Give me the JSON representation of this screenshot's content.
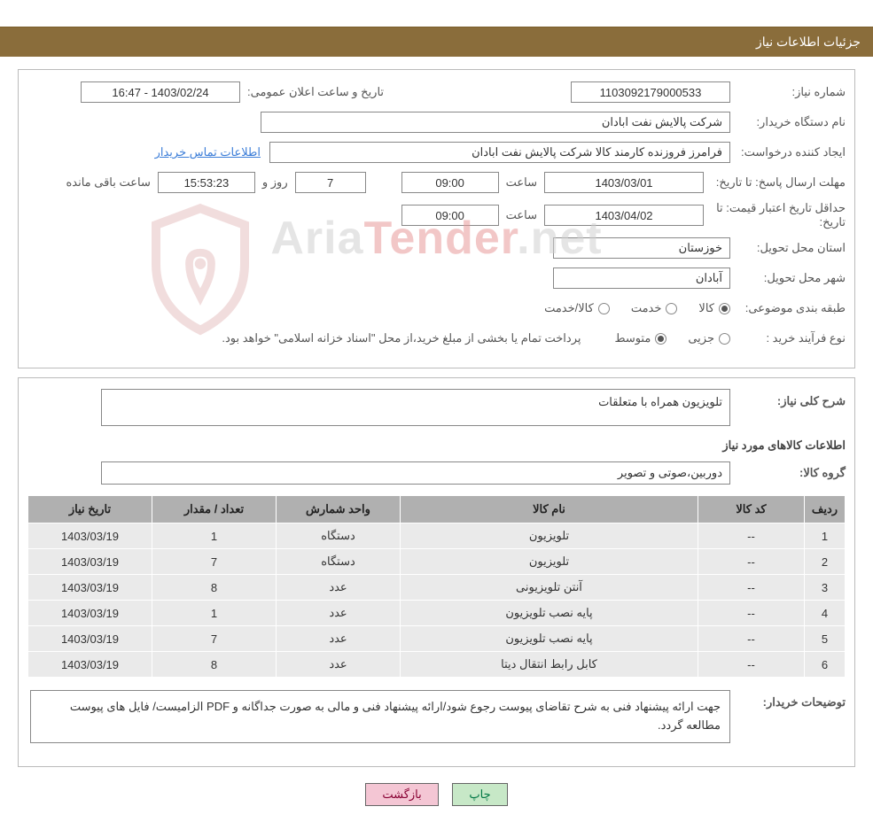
{
  "header": {
    "title": "جزئیات اطلاعات نیاز"
  },
  "labels": {
    "need_number": "شماره نیاز:",
    "datetime_announce": "تاریخ و ساعت اعلان عمومی:",
    "buyer_org": "نام دستگاه خریدار:",
    "requester": "ایجاد کننده درخواست:",
    "contact_link": "اطلاعات تماس خریدار",
    "reply_deadline": "مهلت ارسال پاسخ:",
    "to_date": "تا تاریخ:",
    "time": "ساعت",
    "and": "و",
    "day": "روز و",
    "hours_remain": "ساعت باقی مانده",
    "price_validity": "حداقل تاریخ اعتبار قیمت:",
    "delivery_province": "استان محل تحویل:",
    "delivery_city": "شهر محل تحویل:",
    "subject_class": "طبقه بندی موضوعی:",
    "goods": "کالا",
    "service": "خدمت",
    "goods_service": "کالا/خدمت",
    "purchase_type": "نوع فرآیند خرید :",
    "partial": "جزیی",
    "medium": "متوسط",
    "payment_note": "پرداخت تمام یا بخشی از مبلغ خرید،از محل \"اسناد خزانه اسلامی\" خواهد بود.",
    "general_desc": "شرح کلی نیاز:",
    "items_info": "اطلاعات کالاهای مورد نیاز",
    "goods_group": "گروه کالا:",
    "buyer_notes": "توضیحات خریدار:"
  },
  "fields": {
    "need_number": "1103092179000533",
    "datetime_announce": "1403/02/24 - 16:47",
    "buyer_org": "شرکت پالایش نفت ابادان",
    "requester": "فرامرز فروزنده کارمند کالا شرکت پالایش نفت ابادان",
    "reply_date": "1403/03/01",
    "reply_time": "09:00",
    "days_remain": "7",
    "countdown": "15:53:23",
    "price_date": "1403/04/02",
    "price_time": "09:00",
    "province": "خوزستان",
    "city": "آبادان",
    "general_desc": "تلویزیون همراه با متعلقات",
    "goods_group": "دوربین،صوتی و تصویر",
    "buyer_notes": "جهت ارائه پیشنهاد فنی به شرح تقاضای پیوست رجوع شود/ارائه پیشنهاد فنی و مالی به صورت جداگانه و PDF الزامیست/ فایل های پیوست مطالعه گردد."
  },
  "table": {
    "headers": {
      "row": "ردیف",
      "code": "کد کالا",
      "name": "نام کالا",
      "unit": "واحد شمارش",
      "qty": "تعداد / مقدار",
      "date": "تاریخ نیاز"
    },
    "rows": [
      {
        "n": "1",
        "code": "--",
        "name": "تلویزیون",
        "unit": "دستگاه",
        "qty": "1",
        "date": "1403/03/19"
      },
      {
        "n": "2",
        "code": "--",
        "name": "تلویزیون",
        "unit": "دستگاه",
        "qty": "7",
        "date": "1403/03/19"
      },
      {
        "n": "3",
        "code": "--",
        "name": "آنتن تلویزیونی",
        "unit": "عدد",
        "qty": "8",
        "date": "1403/03/19"
      },
      {
        "n": "4",
        "code": "--",
        "name": "پایه نصب تلویزیون",
        "unit": "عدد",
        "qty": "1",
        "date": "1403/03/19"
      },
      {
        "n": "5",
        "code": "--",
        "name": "پایه نصب تلویزیون",
        "unit": "عدد",
        "qty": "7",
        "date": "1403/03/19"
      },
      {
        "n": "6",
        "code": "--",
        "name": "کابل رابط انتقال دیتا",
        "unit": "عدد",
        "qty": "8",
        "date": "1403/03/19"
      }
    ]
  },
  "buttons": {
    "print": "چاپ",
    "back": "بازگشت"
  },
  "watermark": {
    "p1": "Aria",
    "p2": "Tender",
    "p3": ".net"
  },
  "colors": {
    "header_bg": "#8a6d3b",
    "header_text": "#ffffff",
    "border": "#bbbbbb",
    "field_border": "#888888",
    "link": "#3b7dd8",
    "th_bg": "#b0b0b0",
    "td_bg": "#eaeaea",
    "btn_green": "#c7e8c7",
    "btn_pink": "#f4c6d4"
  }
}
